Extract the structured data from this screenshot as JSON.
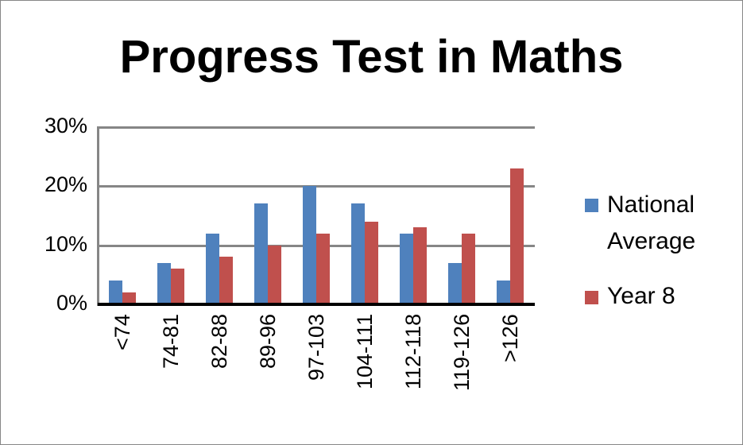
{
  "chart_data": {
    "type": "bar",
    "title": "Progress Test in Maths",
    "xlabel": "",
    "ylabel": "",
    "categories": [
      "<74",
      "74-81",
      "82-88",
      "89-96",
      "97-103",
      "104-111",
      "112-118",
      "119-126",
      ">126"
    ],
    "series": [
      {
        "name": "National Average",
        "color": "#4F81BD",
        "values": [
          4,
          7,
          12,
          17,
          20,
          17,
          12,
          7,
          4
        ]
      },
      {
        "name": "Year 8",
        "color": "#C0504D",
        "values": [
          2,
          6,
          8,
          10,
          12,
          14,
          13,
          12,
          23
        ]
      }
    ],
    "ylim": [
      0,
      30
    ],
    "yticks": [
      "0%",
      "10%",
      "20%",
      "30%"
    ],
    "grid": true,
    "legend_position": "right",
    "unit": "%"
  },
  "legend": {
    "items": [
      {
        "line1": "National",
        "line2": "Average",
        "color": "#4F81BD"
      },
      {
        "line1": "Year 8",
        "color": "#C0504D"
      }
    ]
  }
}
